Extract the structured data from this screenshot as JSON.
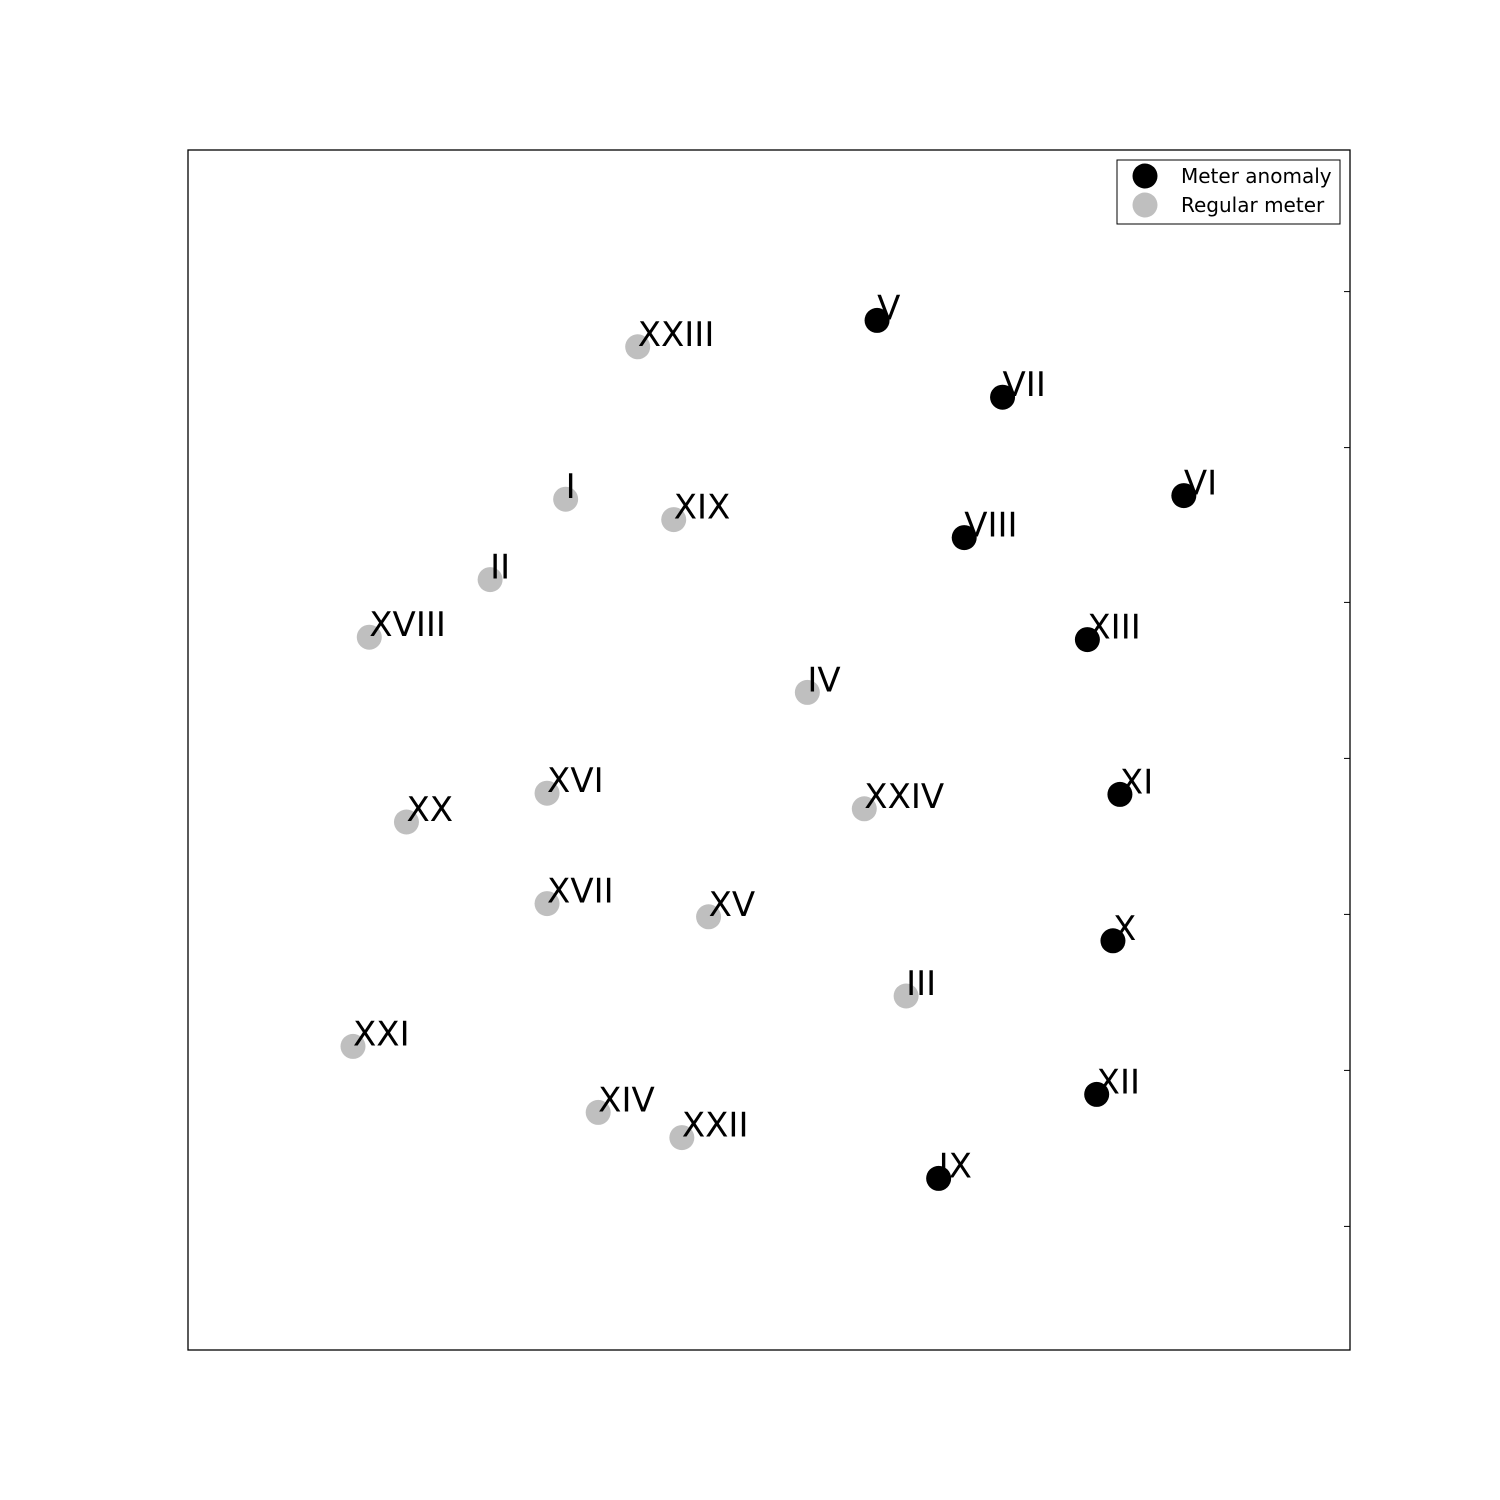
{
  "chart_data": {
    "type": "scatter",
    "title": "",
    "xlabel": "",
    "ylabel": "",
    "xlim": [
      0,
      100
    ],
    "ylim": [
      0,
      100
    ],
    "grid": false,
    "legend_position": "top-right",
    "x_tick_labels_shown": false,
    "y_tick_labels_shown": false,
    "series": [
      {
        "name": "Meter anomaly",
        "color": "#000000",
        "points": [
          {
            "label": "V",
            "x": 59.3,
            "y": 85.8
          },
          {
            "label": "VII",
            "x": 70.1,
            "y": 79.4
          },
          {
            "label": "VI",
            "x": 85.7,
            "y": 71.2
          },
          {
            "label": "VIII",
            "x": 66.8,
            "y": 67.7
          },
          {
            "label": "XIII",
            "x": 77.4,
            "y": 59.2
          },
          {
            "label": "XI",
            "x": 80.2,
            "y": 46.3
          },
          {
            "label": "X",
            "x": 79.6,
            "y": 34.1
          },
          {
            "label": "XII",
            "x": 78.2,
            "y": 21.3
          },
          {
            "label": "IX",
            "x": 64.6,
            "y": 14.3
          }
        ]
      },
      {
        "name": "Regular meter",
        "color": "#bfbfbf",
        "points": [
          {
            "label": "XXIII",
            "x": 38.7,
            "y": 83.6
          },
          {
            "label": "I",
            "x": 32.5,
            "y": 70.9
          },
          {
            "label": "XIX",
            "x": 41.8,
            "y": 69.2
          },
          {
            "label": "II",
            "x": 26.0,
            "y": 64.2
          },
          {
            "label": "XVIII",
            "x": 15.6,
            "y": 59.4
          },
          {
            "label": "IV",
            "x": 53.3,
            "y": 54.8
          },
          {
            "label": "XVI",
            "x": 30.9,
            "y": 46.4
          },
          {
            "label": "XX",
            "x": 18.8,
            "y": 44.0
          },
          {
            "label": "XXIV",
            "x": 58.2,
            "y": 45.1
          },
          {
            "label": "XVII",
            "x": 30.9,
            "y": 37.2
          },
          {
            "label": "XV",
            "x": 44.8,
            "y": 36.1
          },
          {
            "label": "III",
            "x": 61.8,
            "y": 29.5
          },
          {
            "label": "XXI",
            "x": 14.2,
            "y": 25.3
          },
          {
            "label": "XIV",
            "x": 35.3,
            "y": 19.8
          },
          {
            "label": "XXII",
            "x": 42.5,
            "y": 17.7
          }
        ]
      }
    ]
  }
}
